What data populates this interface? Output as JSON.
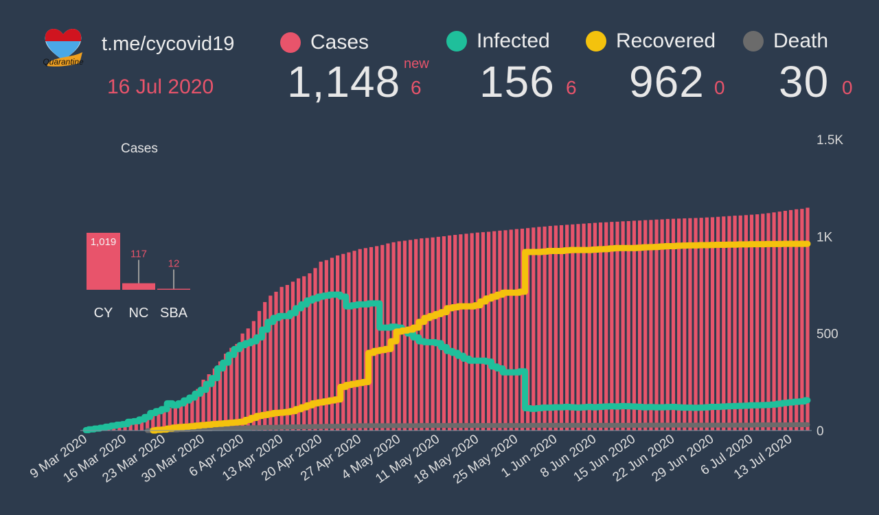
{
  "header": {
    "logo_text": "Quarantine",
    "site": "t.me/cycovid19",
    "date": "16 Jul 2020",
    "new_label": "new"
  },
  "stats": [
    {
      "label": "Cases",
      "value": "1,148",
      "delta": "6",
      "color": "#e8546b"
    },
    {
      "label": "Infected",
      "value": "156",
      "delta": "6",
      "color": "#1fbf9b"
    },
    {
      "label": "Recovered",
      "value": "962",
      "delta": "0",
      "color": "#f4c20d"
    },
    {
      "label": "Death",
      "value": "30",
      "delta": "0",
      "color": "#6b6b6b"
    }
  ],
  "region_chart": {
    "title": "Cases",
    "type": "bar",
    "categories": [
      "CY",
      "NC",
      "SBA"
    ],
    "values": [
      1019,
      117,
      12
    ],
    "value_labels": [
      "1,019",
      "117",
      "12"
    ]
  },
  "chart_data": {
    "type": "bar+line",
    "x_range": [
      "9 Mar 2020",
      "16 Jul 2020"
    ],
    "x_ticks": [
      "9 Mar 2020",
      "16 Mar 2020",
      "23 Mar 2020",
      "30 Mar 2020",
      "6 Apr 2020",
      "13 Apr 2020",
      "20 Apr 2020",
      "27 Apr 2020",
      "4 May 2020",
      "11 May 2020",
      "18 May 2020",
      "25 May 2020",
      "1 Jun 2020",
      "8 Jun 2020",
      "15 Jun 2020",
      "22 Jun 2020",
      "29 Jun 2020",
      "6 Jul 2020",
      "13 Jul 2020"
    ],
    "y_ticks": [
      "0",
      "500",
      "1K",
      "1.5K"
    ],
    "ylim": [
      0,
      1500
    ],
    "y_axis_side": "right",
    "grid": false,
    "series": [
      {
        "name": "Cases",
        "kind": "bar",
        "color": "#e8546b",
        "values": [
          2,
          6,
          10,
          14,
          21,
          26,
          30,
          33,
          46,
          49,
          58,
          67,
          75,
          84,
          95,
          116,
          124,
          146,
          162,
          179,
          214,
          262,
          290,
          320,
          356,
          396,
          426,
          446,
          500,
          526,
          564,
          616,
          662,
          695,
          715,
          740,
          750,
          767,
          784,
          795,
          810,
          837,
          870,
          878,
          890,
          902,
          910,
          918,
          926,
          935,
          940,
          945,
          950,
          956,
          964,
          970,
          975,
          978,
          982,
          986,
          990,
          992,
          995,
          998,
          1001,
          1005,
          1008,
          1011,
          1014,
          1017,
          1020,
          1022,
          1024,
          1027,
          1030,
          1032,
          1035,
          1038,
          1040,
          1043,
          1046,
          1049,
          1051,
          1054,
          1056,
          1058,
          1060,
          1062,
          1064,
          1066,
          1068,
          1070,
          1072,
          1073,
          1075,
          1076,
          1078,
          1079,
          1081,
          1082,
          1084,
          1085,
          1087,
          1088,
          1090,
          1091,
          1092,
          1093,
          1094,
          1095,
          1096,
          1098,
          1099,
          1101,
          1103,
          1105,
          1107,
          1108,
          1110,
          1112,
          1114,
          1117,
          1120,
          1124,
          1128,
          1132,
          1136,
          1140,
          1142,
          1148
        ]
      },
      {
        "name": "Death",
        "kind": "line",
        "color": "#6b6b6b",
        "values": [
          0,
          0,
          0,
          0,
          0,
          0,
          0,
          0,
          0,
          0,
          0,
          0,
          1,
          1,
          2,
          3,
          3,
          5,
          5,
          7,
          8,
          9,
          9,
          10,
          10,
          11,
          11,
          12,
          12,
          14,
          15,
          15,
          16,
          17,
          17,
          18,
          18,
          19,
          19,
          20,
          20,
          21,
          21,
          22,
          22,
          22,
          23,
          24,
          24,
          25,
          25,
          25,
          25,
          25,
          25,
          25,
          25,
          25,
          25,
          25,
          26,
          26,
          26,
          26,
          26,
          26,
          26,
          26,
          26,
          26,
          26,
          26,
          26,
          26,
          26,
          26,
          26,
          26,
          26,
          26,
          27,
          27,
          27,
          27,
          27,
          27,
          27,
          27,
          27,
          27,
          27,
          27,
          27,
          27,
          27,
          27,
          27,
          27,
          27,
          27,
          28,
          28,
          28,
          28,
          28,
          28,
          28,
          28,
          28,
          28,
          28,
          28,
          28,
          28,
          28,
          28,
          28,
          28,
          28,
          28,
          29,
          29,
          29,
          29,
          29,
          29,
          29,
          30,
          30,
          30
        ]
      },
      {
        "name": "Infected",
        "kind": "line",
        "color": "#1fbf9b",
        "values": [
          2,
          6,
          10,
          14,
          20,
          25,
          30,
          33,
          45,
          48,
          57,
          70,
          90,
          100,
          110,
          140,
          130,
          140,
          155,
          170,
          190,
          210,
          240,
          270,
          320,
          350,
          390,
          420,
          440,
          450,
          460,
          480,
          520,
          560,
          580,
          590,
          590,
          605,
          630,
          650,
          670,
          680,
          690,
          695,
          700,
          700,
          690,
          640,
          645,
          650,
          650,
          655,
          655,
          530,
          530,
          535,
          530,
          515,
          500,
          480,
          460,
          455,
          455,
          450,
          430,
          410,
          400,
          385,
          370,
          360,
          360,
          360,
          355,
          330,
          320,
          300,
          300,
          300,
          305,
          115,
          112,
          115,
          118,
          118,
          120,
          120,
          122,
          120,
          118,
          120,
          122,
          120,
          122,
          124,
          125,
          124,
          126,
          125,
          124,
          122,
          120,
          121,
          120,
          120,
          121,
          122,
          120,
          118,
          118,
          117,
          118,
          120,
          122,
          122,
          124,
          125,
          126,
          127,
          128,
          130,
          130,
          131,
          132,
          134,
          138,
          142,
          145,
          148,
          150,
          156
        ]
      },
      {
        "name": "Recovered",
        "kind": "line",
        "color": "#f4c20d",
        "values": [
          0,
          0,
          0,
          0,
          0,
          0,
          0,
          0,
          0,
          0,
          0,
          0,
          0,
          3,
          5,
          10,
          15,
          18,
          20,
          22,
          25,
          28,
          30,
          33,
          35,
          37,
          40,
          42,
          45,
          55,
          65,
          75,
          80,
          85,
          90,
          92,
          95,
          100,
          110,
          120,
          130,
          140,
          145,
          150,
          155,
          160,
          225,
          235,
          240,
          245,
          250,
          400,
          410,
          415,
          420,
          460,
          510,
          515,
          520,
          530,
          560,
          580,
          590,
          600,
          610,
          630,
          635,
          640,
          640,
          640,
          645,
          665,
          680,
          690,
          700,
          710,
          710,
          710,
          715,
          920,
          920,
          920,
          922,
          925,
          925,
          925,
          928,
          930,
          930,
          930,
          930,
          932,
          934,
          935,
          938,
          940,
          940,
          940,
          940,
          942,
          944,
          945,
          946,
          948,
          950,
          950,
          952,
          953,
          954,
          954,
          955,
          955,
          956,
          957,
          957,
          958,
          958,
          959,
          959,
          960,
          960,
          960,
          961,
          961,
          961,
          962,
          962,
          962,
          962,
          962
        ]
      }
    ]
  }
}
